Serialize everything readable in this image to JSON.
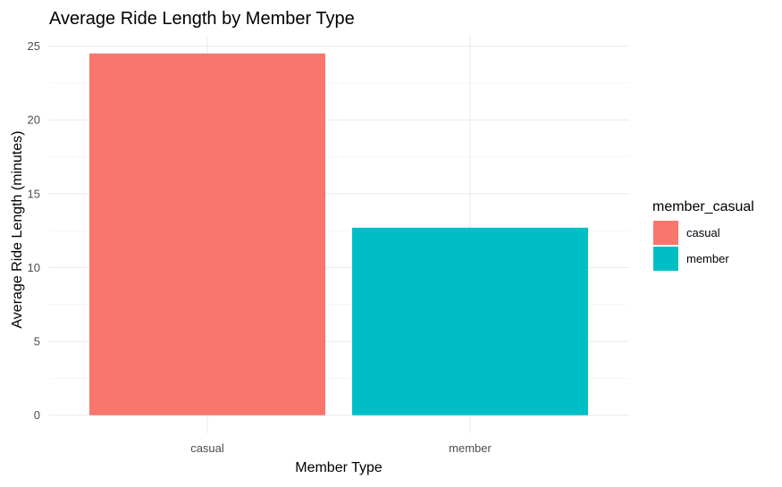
{
  "chart_data": {
    "type": "bar",
    "title": "Average Ride Length by Member Type",
    "xlabel": "Member Type",
    "ylabel": "Average Ride Length (minutes)",
    "categories": [
      "casual",
      "member"
    ],
    "values": [
      24.5,
      12.7
    ],
    "ylim": [
      0,
      25
    ],
    "yticks": [
      0,
      5,
      10,
      15,
      20,
      25
    ],
    "grid": true,
    "legend": {
      "title": "member_casual",
      "placement": "right",
      "entries": [
        {
          "label": "casual",
          "color": "#F8766D"
        },
        {
          "label": "member",
          "color": "#00BFC4"
        }
      ]
    },
    "colors": [
      "#F8766D",
      "#00BFC4"
    ]
  }
}
